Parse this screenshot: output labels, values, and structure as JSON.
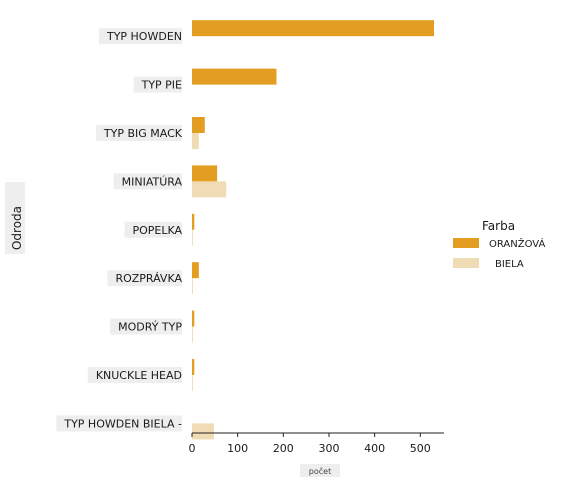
{
  "chart_data": {
    "type": "bar",
    "orientation": "horizontal",
    "title": "",
    "xlabel": "počet",
    "ylabel": "Odroda",
    "xlim": [
      0,
      560
    ],
    "x_ticks": [
      0,
      100,
      200,
      300,
      400,
      500
    ],
    "grid": false,
    "legend_title": "Farba",
    "legend_position": "right",
    "categories": [
      "TYP HOWDEN",
      "TYP PIE",
      "TYP BIG MACK",
      "MINIATÚRA",
      "POPELKA",
      "ROZPRÁVKA",
      "MODRÝ TYP",
      "KNUCKLE HEAD",
      "TYP HOWDEN BIELA -"
    ],
    "series": [
      {
        "name": "ORANŽOVÁ",
        "color": "#e39e21",
        "values": [
          530,
          185,
          28,
          55,
          5,
          15,
          5,
          5,
          0
        ]
      },
      {
        "name": "BIELA",
        "color": "#f0dcb4",
        "values": [
          0,
          0,
          15,
          75,
          2,
          2,
          2,
          2,
          48
        ]
      }
    ]
  }
}
